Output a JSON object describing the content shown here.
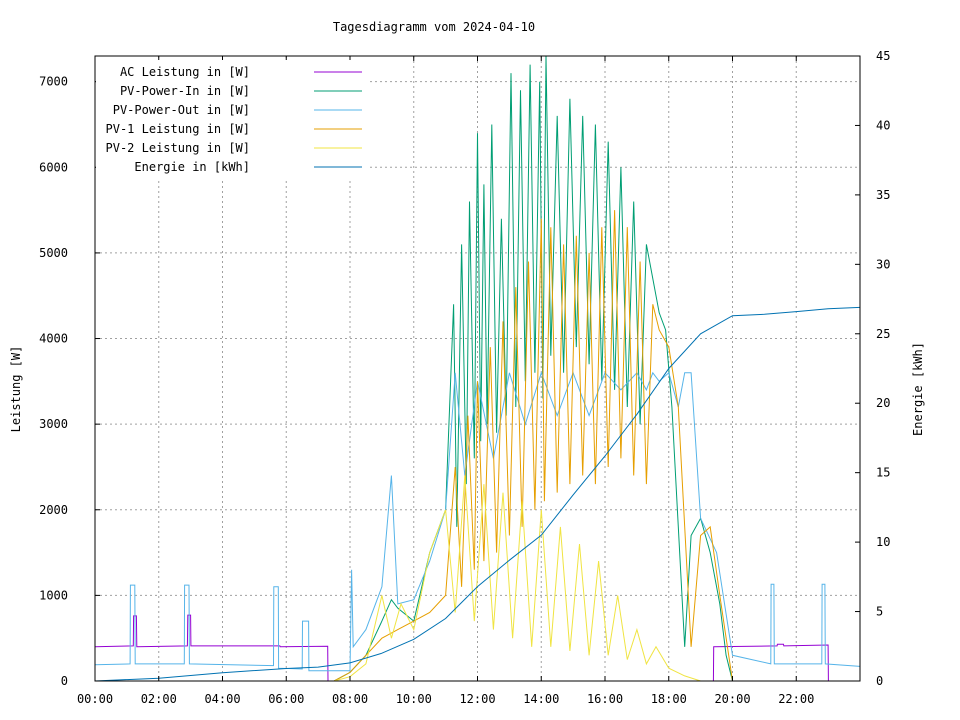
{
  "chart_data": {
    "type": "line",
    "title": "Tagesdiagramm vom 2024-04-10",
    "ylabel": "Leistung [W]",
    "y2label": "Energie [kWh]",
    "x_unit": "hours",
    "xlim": [
      0,
      24
    ],
    "ylim": [
      0,
      7300
    ],
    "y2lim": [
      0,
      45
    ],
    "grid": true,
    "legend_position": "top-left",
    "x_ticks": [
      {
        "value": 0,
        "label": "00:00"
      },
      {
        "value": 2,
        "label": "02:00"
      },
      {
        "value": 4,
        "label": "04:00"
      },
      {
        "value": 6,
        "label": "06:00"
      },
      {
        "value": 8,
        "label": "08:00"
      },
      {
        "value": 10,
        "label": "10:00"
      },
      {
        "value": 12,
        "label": "12:00"
      },
      {
        "value": 14,
        "label": "14:00"
      },
      {
        "value": 16,
        "label": "16:00"
      },
      {
        "value": 18,
        "label": "18:00"
      },
      {
        "value": 20,
        "label": "20:00"
      },
      {
        "value": 22,
        "label": "22:00"
      }
    ],
    "y_ticks": [
      {
        "value": 0,
        "label": "0"
      },
      {
        "value": 1000,
        "label": "1000"
      },
      {
        "value": 2000,
        "label": "2000"
      },
      {
        "value": 3000,
        "label": "3000"
      },
      {
        "value": 4000,
        "label": "4000"
      },
      {
        "value": 5000,
        "label": "5000"
      },
      {
        "value": 6000,
        "label": "6000"
      },
      {
        "value": 7000,
        "label": "7000"
      }
    ],
    "y2_ticks": [
      {
        "value": 0,
        "label": "0"
      },
      {
        "value": 5,
        "label": "5"
      },
      {
        "value": 10,
        "label": "10"
      },
      {
        "value": 15,
        "label": "15"
      },
      {
        "value": 20,
        "label": "20"
      },
      {
        "value": 25,
        "label": "25"
      },
      {
        "value": 30,
        "label": "30"
      },
      {
        "value": 35,
        "label": "35"
      },
      {
        "value": 40,
        "label": "40"
      },
      {
        "value": 45,
        "label": "45"
      }
    ],
    "series": [
      {
        "name": "AC Leistung in [W]",
        "color": "#9400d3",
        "axis": "y",
        "x": [
          0,
          1.2,
          1.21,
          1.3,
          1.31,
          2.9,
          2.91,
          3.0,
          3.01,
          5.8,
          5.81,
          7.3,
          7.31,
          19.4,
          19.41,
          21.4,
          21.41,
          21.6,
          21.61,
          23.0,
          23.01,
          24
        ],
        "y": [
          400,
          410,
          760,
          760,
          400,
          410,
          770,
          770,
          410,
          410,
          400,
          405,
          0,
          0,
          400,
          410,
          430,
          430,
          410,
          420,
          0,
          0
        ]
      },
      {
        "name": "PV-Power-In in [W]",
        "color": "#009e73",
        "axis": "y",
        "x": [
          0,
          7.5,
          8.0,
          8.5,
          9.0,
          9.3,
          9.5,
          10.0,
          10.5,
          11.0,
          11.25,
          11.35,
          11.5,
          11.65,
          11.75,
          11.9,
          12.0,
          12.1,
          12.2,
          12.3,
          12.45,
          12.6,
          12.75,
          12.9,
          13.05,
          13.2,
          13.35,
          13.5,
          13.65,
          13.8,
          13.95,
          14.05,
          14.15,
          14.3,
          14.5,
          14.7,
          14.9,
          15.1,
          15.3,
          15.5,
          15.7,
          15.9,
          16.1,
          16.3,
          16.5,
          16.7,
          16.9,
          17.1,
          17.3,
          17.5,
          17.7,
          17.9,
          18.1,
          18.3,
          18.5,
          18.7,
          19.0,
          19.3,
          19.6,
          19.8,
          20.0,
          24
        ],
        "y": [
          0,
          0,
          100,
          300,
          700,
          950,
          850,
          700,
          1500,
          2000,
          4400,
          1800,
          5100,
          2300,
          5600,
          2600,
          6400,
          2800,
          5800,
          3000,
          6500,
          2900,
          5400,
          3100,
          7100,
          3200,
          6900,
          3500,
          7200,
          3600,
          7000,
          3300,
          7300,
          3800,
          6600,
          3600,
          6800,
          3900,
          6600,
          3700,
          6500,
          3500,
          6300,
          3400,
          6000,
          3200,
          5600,
          3000,
          5100,
          4700,
          4300,
          4100,
          3200,
          1800,
          400,
          1700,
          1900,
          1500,
          900,
          300,
          0,
          0
        ]
      },
      {
        "name": "PV-Power-Out in [W]",
        "color": "#56b4e9",
        "axis": "y",
        "x": [
          0,
          1.1,
          1.11,
          1.25,
          1.26,
          2.8,
          2.81,
          2.95,
          2.96,
          5.6,
          5.61,
          5.75,
          5.76,
          6.5,
          6.51,
          6.7,
          6.71,
          8.0,
          8.05,
          8.1,
          8.5,
          9.0,
          9.3,
          9.5,
          10.0,
          10.5,
          11.0,
          11.3,
          11.6,
          12.0,
          12.5,
          13.0,
          13.5,
          14.0,
          14.5,
          15.0,
          15.5,
          16.0,
          16.5,
          17.0,
          17.3,
          17.5,
          17.7,
          18.0,
          18.3,
          18.5,
          18.7,
          19.0,
          19.5,
          20.0,
          21.2,
          21.21,
          21.3,
          21.31,
          22.8,
          22.81,
          22.9,
          22.91,
          24
        ],
        "y": [
          190,
          200,
          1120,
          1120,
          200,
          200,
          1120,
          1120,
          200,
          180,
          1100,
          1100,
          150,
          140,
          700,
          700,
          120,
          120,
          1300,
          400,
          600,
          1100,
          2400,
          900,
          950,
          1400,
          2000,
          3600,
          2400,
          3500,
          2600,
          3600,
          3000,
          3600,
          3100,
          3600,
          3100,
          3600,
          3400,
          3600,
          3400,
          3600,
          3500,
          3600,
          3200,
          3600,
          3600,
          1900,
          1500,
          300,
          200,
          1130,
          1130,
          200,
          200,
          1130,
          1130,
          200,
          170
        ]
      },
      {
        "name": "PV-1 Leistung in [W]",
        "color": "#e69f00",
        "axis": "y",
        "x": [
          0,
          7.5,
          8.0,
          8.5,
          9.0,
          9.5,
          10.0,
          10.5,
          11.0,
          11.3,
          11.5,
          11.7,
          11.9,
          12.0,
          12.2,
          12.4,
          12.6,
          12.8,
          13.0,
          13.2,
          13.4,
          13.6,
          13.8,
          14.0,
          14.1,
          14.3,
          14.5,
          14.7,
          14.9,
          15.1,
          15.3,
          15.5,
          15.7,
          15.9,
          16.1,
          16.3,
          16.5,
          16.7,
          16.9,
          17.1,
          17.3,
          17.5,
          17.7,
          18.0,
          18.3,
          18.5,
          18.7,
          19.0,
          19.3,
          19.6,
          20.0,
          24
        ],
        "y": [
          0,
          0,
          100,
          300,
          500,
          600,
          700,
          800,
          1000,
          2500,
          1100,
          3100,
          1300,
          3500,
          1400,
          3900,
          1500,
          4200,
          1700,
          4600,
          1800,
          4900,
          2000,
          5400,
          2100,
          5300,
          2200,
          5100,
          2300,
          5200,
          2400,
          5000,
          2300,
          5300,
          2500,
          5500,
          2600,
          5300,
          2400,
          4900,
          2300,
          4400,
          4100,
          3900,
          3200,
          1800,
          400,
          1700,
          1800,
          1000,
          0,
          0
        ]
      },
      {
        "name": "PV-2 Leistung in [W]",
        "color": "#f0e442",
        "axis": "y",
        "x": [
          0,
          7.5,
          8.0,
          8.5,
          9.0,
          9.3,
          9.6,
          10.0,
          10.5,
          11.0,
          11.3,
          11.6,
          11.9,
          12.2,
          12.5,
          12.8,
          13.1,
          13.4,
          13.7,
          14.0,
          14.3,
          14.6,
          14.9,
          15.2,
          15.5,
          15.8,
          16.1,
          16.4,
          16.7,
          17.0,
          17.3,
          17.6,
          18.0,
          18.5,
          19.0,
          24
        ],
        "y": [
          0,
          0,
          50,
          200,
          1000,
          500,
          900,
          600,
          1500,
          2000,
          800,
          2400,
          700,
          2300,
          600,
          2200,
          500,
          2100,
          400,
          2000,
          400,
          1800,
          350,
          1600,
          300,
          1400,
          300,
          1000,
          250,
          600,
          200,
          400,
          150,
          60,
          0,
          0
        ]
      },
      {
        "name": "Energie in [kWh]",
        "color": "#0072b2",
        "axis": "y2",
        "x": [
          0,
          2,
          4,
          6,
          7,
          8,
          9,
          10,
          11,
          12,
          13,
          14,
          15,
          16,
          17,
          18,
          19,
          20,
          21,
          22,
          23,
          24
        ],
        "y": [
          0,
          0.2,
          0.6,
          0.9,
          1.0,
          1.3,
          2.0,
          3.0,
          4.5,
          6.8,
          8.7,
          10.5,
          13.4,
          16.2,
          19.2,
          22.5,
          25.0,
          26.3,
          26.4,
          26.6,
          26.8,
          26.9
        ]
      }
    ]
  }
}
